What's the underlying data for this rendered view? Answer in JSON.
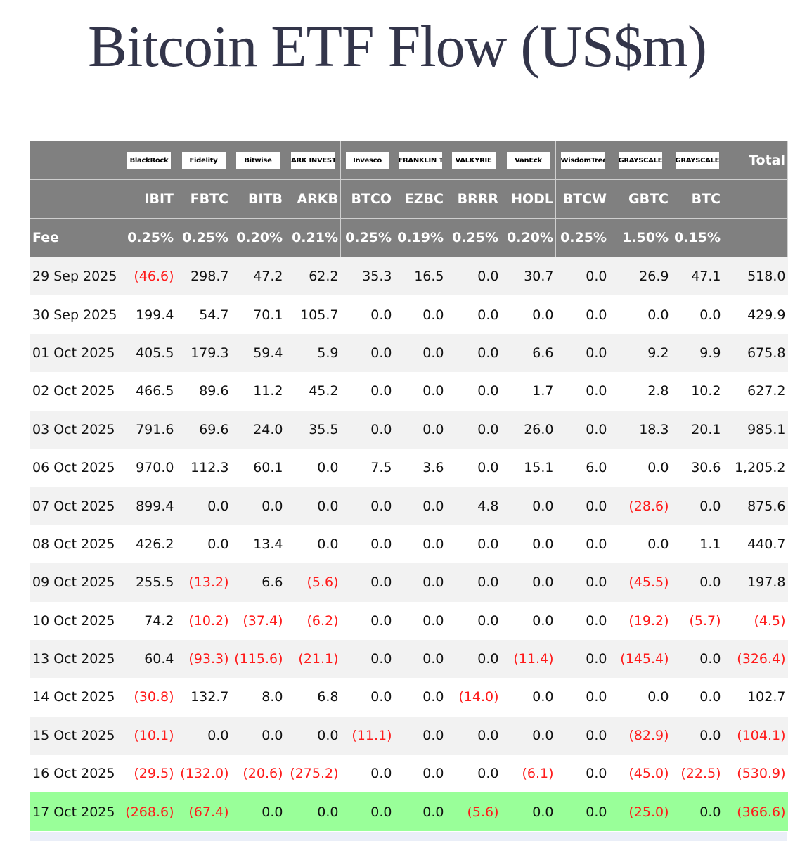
{
  "title": "Bitcoin ETF Flow (US$m)",
  "colors": {
    "header_bg": "#808080",
    "negative": "#ff1a1a",
    "latest_row": "#99ff99",
    "stripe": "#f2f2f2"
  },
  "header": {
    "logos": [
      "BlackRock",
      "Fidelity",
      "Bitwise",
      "ARK INVEST",
      "Invesco",
      "FRANKLIN TEMPLETON",
      "VALKYRIE",
      "VanEck",
      "WisdomTree",
      "GRAYSCALE",
      "GRAYSCALE"
    ],
    "total_label": "Total",
    "tickers": [
      "IBIT",
      "FBTC",
      "BITB",
      "ARKB",
      "BTCO",
      "EZBC",
      "BRRR",
      "HODL",
      "BTCW",
      "GBTC",
      "BTC"
    ],
    "fee_label": "Fee",
    "fees": [
      "0.25%",
      "0.25%",
      "0.20%",
      "0.21%",
      "0.25%",
      "0.19%",
      "0.25%",
      "0.20%",
      "0.25%",
      "1.50%",
      "0.15%"
    ]
  },
  "rows": [
    {
      "date": "29 Sep 2025",
      "values": [
        "(46.6)",
        "298.7",
        "47.2",
        "62.2",
        "35.3",
        "16.5",
        "0.0",
        "30.7",
        "0.0",
        "26.9",
        "47.1",
        "518.0"
      ]
    },
    {
      "date": "30 Sep 2025",
      "values": [
        "199.4",
        "54.7",
        "70.1",
        "105.7",
        "0.0",
        "0.0",
        "0.0",
        "0.0",
        "0.0",
        "0.0",
        "0.0",
        "429.9"
      ]
    },
    {
      "date": "01 Oct 2025",
      "values": [
        "405.5",
        "179.3",
        "59.4",
        "5.9",
        "0.0",
        "0.0",
        "0.0",
        "6.6",
        "0.0",
        "9.2",
        "9.9",
        "675.8"
      ]
    },
    {
      "date": "02 Oct 2025",
      "values": [
        "466.5",
        "89.6",
        "11.2",
        "45.2",
        "0.0",
        "0.0",
        "0.0",
        "1.7",
        "0.0",
        "2.8",
        "10.2",
        "627.2"
      ]
    },
    {
      "date": "03 Oct 2025",
      "values": [
        "791.6",
        "69.6",
        "24.0",
        "35.5",
        "0.0",
        "0.0",
        "0.0",
        "26.0",
        "0.0",
        "18.3",
        "20.1",
        "985.1"
      ]
    },
    {
      "date": "06 Oct 2025",
      "values": [
        "970.0",
        "112.3",
        "60.1",
        "0.0",
        "7.5",
        "3.6",
        "0.0",
        "15.1",
        "6.0",
        "0.0",
        "30.6",
        "1,205.2"
      ]
    },
    {
      "date": "07 Oct 2025",
      "values": [
        "899.4",
        "0.0",
        "0.0",
        "0.0",
        "0.0",
        "0.0",
        "4.8",
        "0.0",
        "0.0",
        "(28.6)",
        "0.0",
        "875.6"
      ]
    },
    {
      "date": "08 Oct 2025",
      "values": [
        "426.2",
        "0.0",
        "13.4",
        "0.0",
        "0.0",
        "0.0",
        "0.0",
        "0.0",
        "0.0",
        "0.0",
        "1.1",
        "440.7"
      ]
    },
    {
      "date": "09 Oct 2025",
      "values": [
        "255.5",
        "(13.2)",
        "6.6",
        "(5.6)",
        "0.0",
        "0.0",
        "0.0",
        "0.0",
        "0.0",
        "(45.5)",
        "0.0",
        "197.8"
      ]
    },
    {
      "date": "10 Oct 2025",
      "values": [
        "74.2",
        "(10.2)",
        "(37.4)",
        "(6.2)",
        "0.0",
        "0.0",
        "0.0",
        "0.0",
        "0.0",
        "(19.2)",
        "(5.7)",
        "(4.5)"
      ]
    },
    {
      "date": "13 Oct 2025",
      "values": [
        "60.4",
        "(93.3)",
        "(115.6)",
        "(21.1)",
        "0.0",
        "0.0",
        "0.0",
        "(11.4)",
        "0.0",
        "(145.4)",
        "0.0",
        "(326.4)"
      ]
    },
    {
      "date": "14 Oct 2025",
      "values": [
        "(30.8)",
        "132.7",
        "8.0",
        "6.8",
        "0.0",
        "0.0",
        "(14.0)",
        "0.0",
        "0.0",
        "0.0",
        "0.0",
        "102.7"
      ]
    },
    {
      "date": "15 Oct 2025",
      "values": [
        "(10.1)",
        "0.0",
        "0.0",
        "0.0",
        "(11.1)",
        "0.0",
        "0.0",
        "0.0",
        "0.0",
        "(82.9)",
        "0.0",
        "(104.1)"
      ]
    },
    {
      "date": "16 Oct 2025",
      "values": [
        "(29.5)",
        "(132.0)",
        "(20.6)",
        "(275.2)",
        "0.0",
        "0.0",
        "0.0",
        "(6.1)",
        "0.0",
        "(45.0)",
        "(22.5)",
        "(530.9)"
      ]
    },
    {
      "date": "17 Oct 2025",
      "values": [
        "(268.6)",
        "(67.4)",
        "0.0",
        "0.0",
        "0.0",
        "0.0",
        "(5.6)",
        "0.0",
        "0.0",
        "(25.0)",
        "0.0",
        "(366.6)"
      ]
    }
  ]
}
